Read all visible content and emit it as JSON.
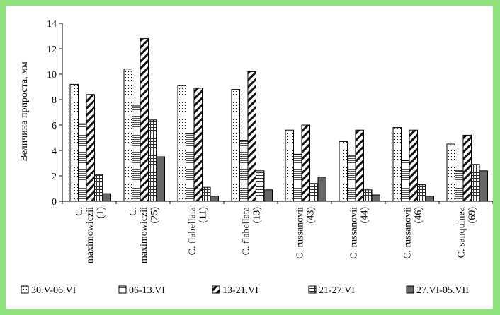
{
  "chart_data": {
    "type": "bar",
    "ylabel": "Величина прироста, мм",
    "ylim": [
      0,
      14
    ],
    "yticks": [
      0,
      2,
      4,
      6,
      8,
      10,
      12,
      14
    ],
    "grid": false,
    "legend_position": "bottom",
    "categories": [
      [
        "C.",
        "maximowiczii",
        "(1)"
      ],
      [
        "C.",
        "maximowiczii",
        "(25)"
      ],
      [
        "C. flabellata",
        "(11)"
      ],
      [
        "C. flabellata",
        "(13)"
      ],
      [
        "C. russanovii",
        "(43)"
      ],
      [
        "C. russanovii",
        "(44)"
      ],
      [
        "C. russanovii",
        "(46)"
      ],
      [
        "C. sanquinea",
        "(69)"
      ]
    ],
    "series": [
      {
        "name": "30.V-06.VI",
        "pattern": "dots",
        "values": [
          9.2,
          10.4,
          9.1,
          8.8,
          5.6,
          4.7,
          5.8,
          4.5
        ]
      },
      {
        "name": "06-13.VI",
        "pattern": "hlines",
        "values": [
          6.1,
          7.5,
          5.3,
          4.8,
          3.7,
          3.6,
          3.2,
          2.4
        ]
      },
      {
        "name": "13-21.VI",
        "pattern": "diag",
        "values": [
          8.4,
          12.8,
          8.9,
          10.2,
          6.0,
          5.6,
          5.6,
          5.2
        ]
      },
      {
        "name": "21-27.VI",
        "pattern": "grid",
        "values": [
          2.1,
          6.4,
          1.1,
          2.4,
          1.4,
          0.9,
          1.3,
          2.9
        ]
      },
      {
        "name": "27.VI-05.VII",
        "pattern": "solid",
        "values": [
          0.6,
          3.5,
          0.4,
          0.9,
          1.9,
          0.5,
          0.4,
          2.4
        ]
      }
    ]
  }
}
